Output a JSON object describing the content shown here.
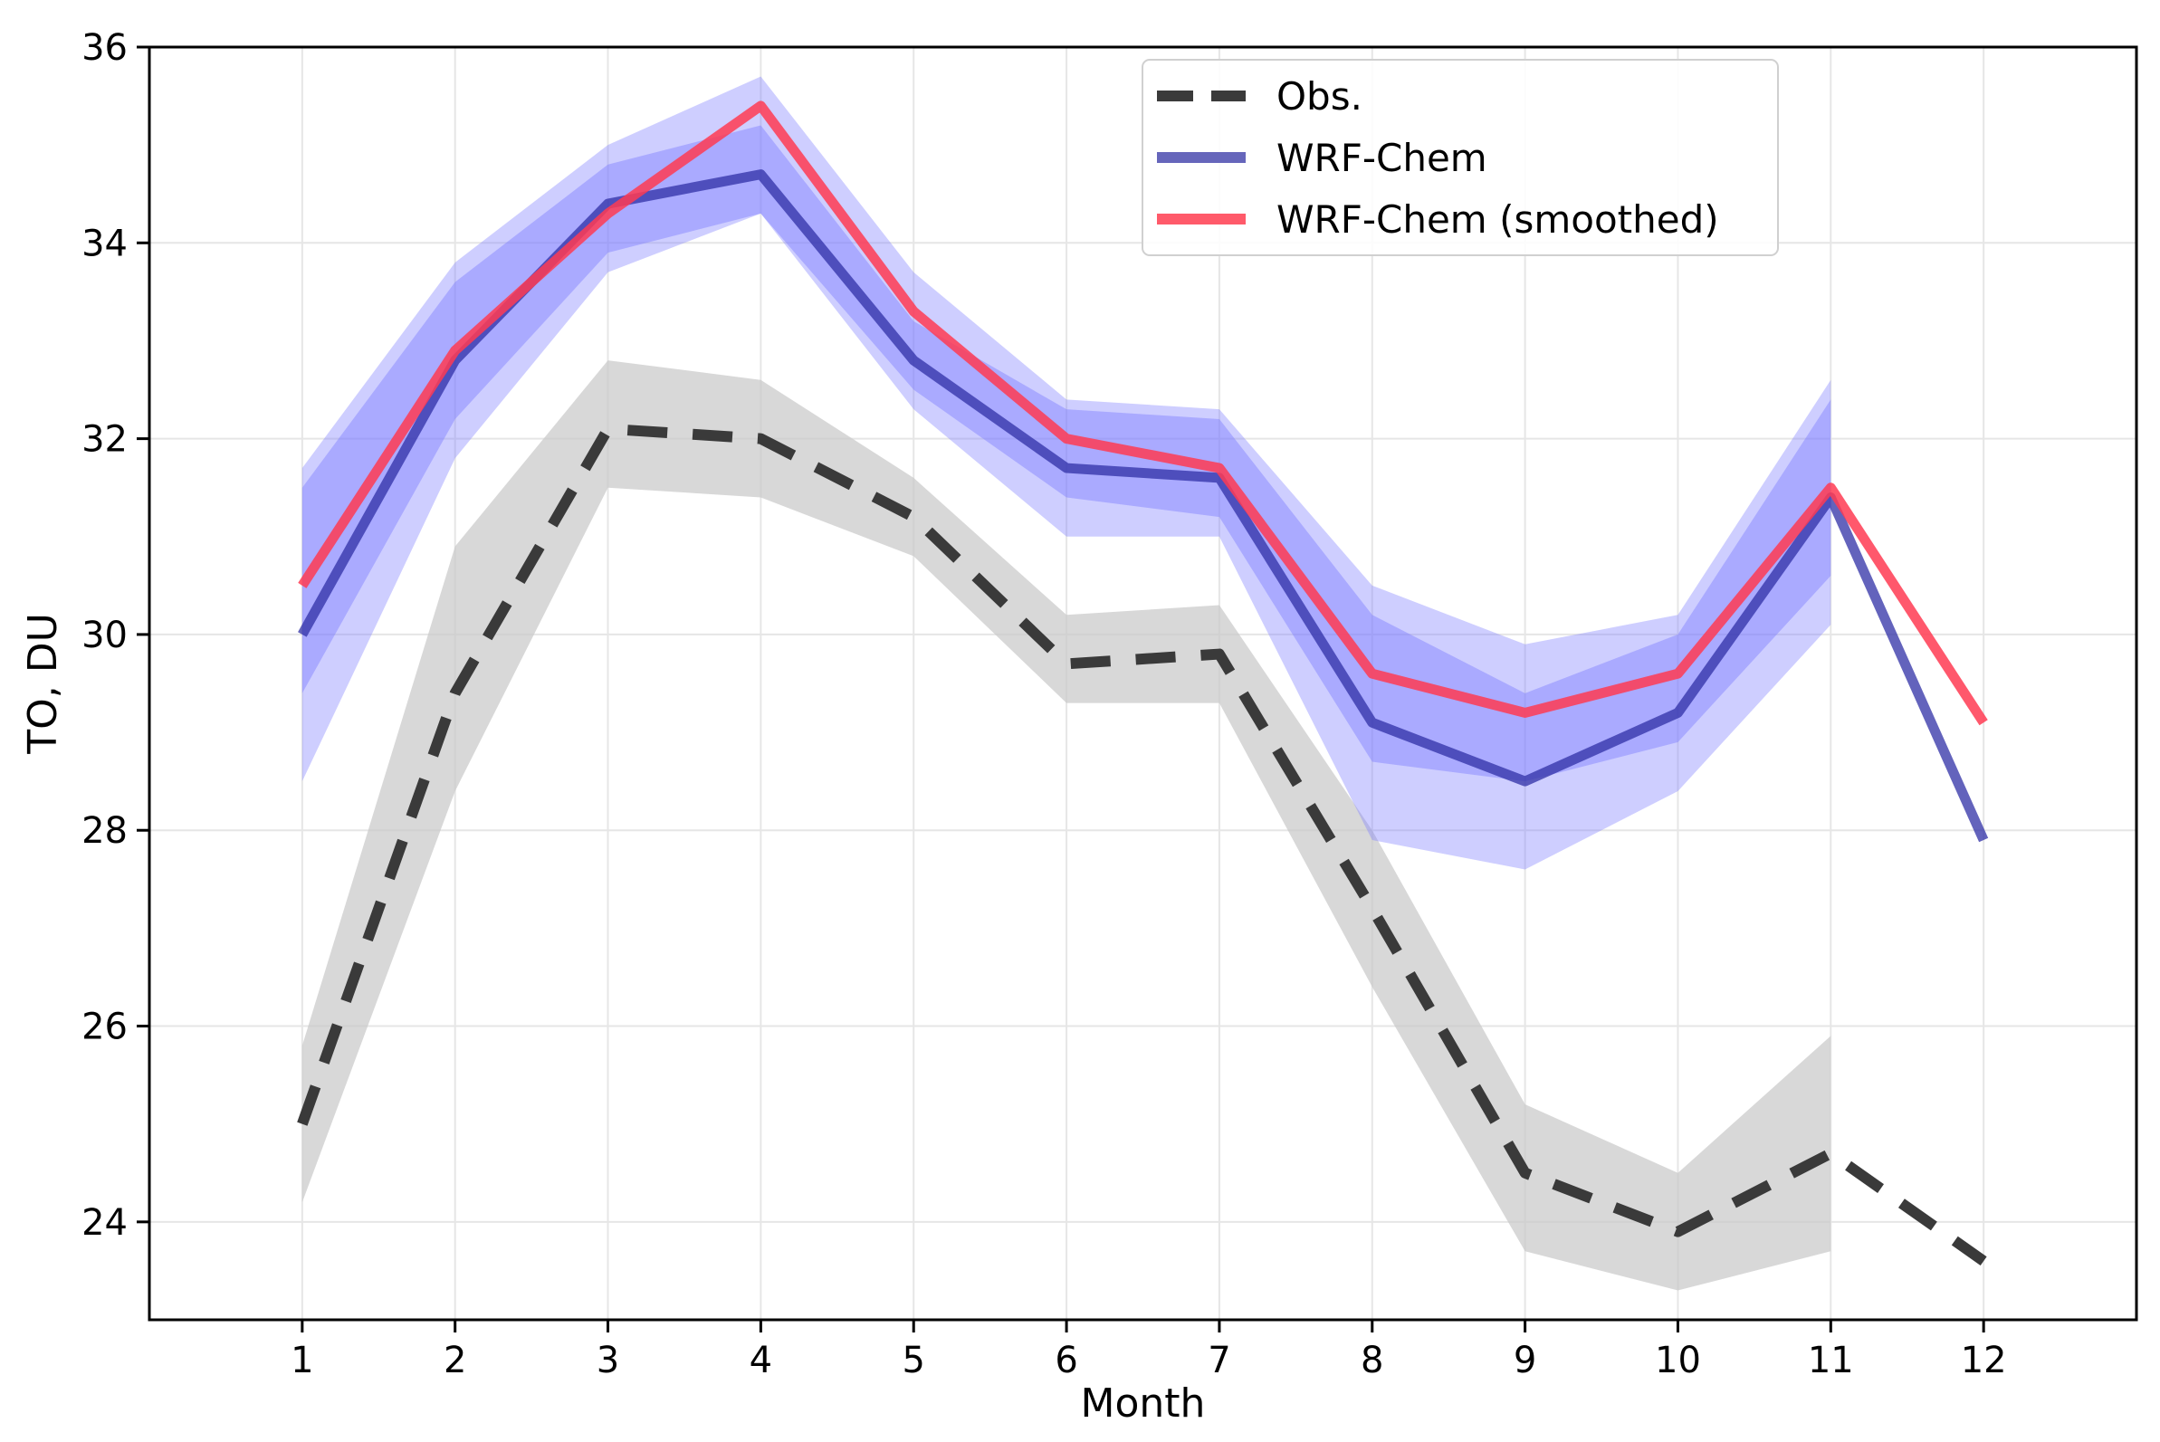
{
  "chart_data": {
    "type": "line",
    "xlabel": "Month",
    "ylabel": "TO, DU",
    "xlim": [
      0,
      13
    ],
    "ylim": [
      23,
      36
    ],
    "x_ticks": [
      1,
      2,
      3,
      4,
      5,
      6,
      7,
      8,
      9,
      10,
      11,
      12
    ],
    "y_ticks": [
      24,
      26,
      28,
      30,
      32,
      34,
      36
    ],
    "grid": true,
    "legend_position": "top-right",
    "series": [
      {
        "key": "obs",
        "name": "Obs.",
        "color": "#3a3a3a",
        "dash": "dashed",
        "x": [
          1,
          2,
          3,
          4,
          5,
          6,
          7,
          8,
          9,
          10,
          11,
          12
        ],
        "values": [
          25.0,
          29.4,
          32.1,
          32.0,
          31.2,
          29.7,
          29.8,
          27.2,
          24.5,
          23.9,
          24.7,
          23.6
        ],
        "band_sd1": {
          "x": [
            1,
            2,
            3,
            4,
            5,
            6,
            7,
            8,
            9,
            10,
            11
          ],
          "lower": [
            24.2,
            28.4,
            31.5,
            31.4,
            30.8,
            29.3,
            29.3,
            26.4,
            23.7,
            23.3,
            23.7
          ],
          "upper": [
            25.8,
            30.9,
            32.8,
            32.6,
            31.6,
            30.2,
            30.3,
            28.0,
            25.2,
            24.5,
            25.9
          ]
        },
        "band_color": "#c8c8c8"
      },
      {
        "key": "wrf",
        "name": "WRF-Chem",
        "color": "#2f2fa5",
        "dash": "solid",
        "x": [
          1,
          2,
          3,
          4,
          5,
          6,
          7,
          8,
          9,
          10,
          11,
          12
        ],
        "values": [
          30.0,
          32.8,
          34.4,
          34.7,
          32.8,
          31.7,
          31.6,
          29.1,
          28.5,
          29.2,
          31.4,
          27.9
        ],
        "band_sd1": {
          "x": [
            1,
            2,
            3,
            4,
            5,
            6,
            7,
            8,
            9,
            10,
            11
          ],
          "lower": [
            29.4,
            32.2,
            33.9,
            34.3,
            32.5,
            31.4,
            31.2,
            28.7,
            28.5,
            28.9,
            30.6
          ],
          "upper": [
            31.5,
            33.6,
            34.8,
            35.2,
            33.2,
            32.3,
            32.2,
            30.2,
            29.4,
            30.0,
            32.4
          ]
        },
        "band_sd2": {
          "x": [
            1,
            2,
            3,
            4,
            5,
            6,
            7,
            8,
            9,
            10,
            11
          ],
          "lower": [
            28.5,
            31.8,
            33.7,
            34.3,
            32.3,
            31.0,
            31.0,
            27.9,
            27.6,
            28.4,
            30.1
          ],
          "upper": [
            31.7,
            33.8,
            35.0,
            35.7,
            33.7,
            32.4,
            32.3,
            30.5,
            29.9,
            30.2,
            32.6
          ]
        },
        "band_color": "#7f7fff"
      },
      {
        "key": "wrf_smoothed",
        "name": "WRF-Chem (smoothed)",
        "color": "#ff3b52",
        "dash": "solid",
        "x": [
          1,
          2,
          3,
          4,
          5,
          6,
          7,
          8,
          9,
          10,
          11,
          12
        ],
        "values": [
          30.5,
          32.9,
          34.3,
          35.4,
          33.3,
          32.0,
          31.7,
          29.6,
          29.2,
          29.6,
          31.5,
          29.1
        ]
      }
    ],
    "legend": [
      {
        "label": "Obs.",
        "color": "#3a3a3a",
        "dash": "dashed"
      },
      {
        "label": "WRF-Chem",
        "color": "#6666bb",
        "dash": "solid"
      },
      {
        "label": "WRF-Chem (smoothed)",
        "color": "#ff5a6a",
        "dash": "solid"
      }
    ]
  }
}
